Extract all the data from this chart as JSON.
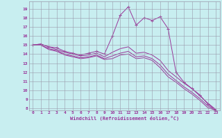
{
  "xlabel": "Windchill (Refroidissement éolien,°C)",
  "xlim": [
    -0.5,
    23.5
  ],
  "ylim": [
    7.8,
    19.8
  ],
  "yticks": [
    8,
    9,
    10,
    11,
    12,
    13,
    14,
    15,
    16,
    17,
    18,
    19
  ],
  "xticks": [
    0,
    1,
    2,
    3,
    4,
    5,
    6,
    7,
    8,
    9,
    10,
    11,
    12,
    13,
    14,
    15,
    16,
    17,
    18,
    19,
    20,
    21,
    22,
    23
  ],
  "bg_color": "#c8eef0",
  "line_color": "#993399",
  "grid_color": "#9999aa",
  "lines": [
    {
      "x": [
        0,
        1,
        2,
        3,
        4,
        5,
        6,
        7,
        8,
        9,
        10,
        11,
        12,
        13,
        14,
        15,
        16,
        17,
        18,
        19,
        20,
        21,
        22,
        23
      ],
      "y": [
        15.0,
        15.1,
        14.8,
        14.7,
        14.3,
        14.1,
        13.9,
        14.1,
        14.3,
        14.0,
        16.0,
        18.3,
        19.2,
        17.2,
        18.0,
        17.7,
        18.1,
        16.8,
        12.0,
        10.9,
        10.2,
        9.5,
        8.5,
        7.8
      ],
      "marker": "+"
    },
    {
      "x": [
        0,
        1,
        2,
        3,
        4,
        5,
        6,
        7,
        8,
        9,
        10,
        11,
        12,
        13,
        14,
        15,
        16,
        17,
        18,
        19,
        20,
        21,
        22,
        23
      ],
      "y": [
        15.0,
        15.1,
        14.8,
        14.5,
        14.2,
        14.0,
        13.8,
        13.9,
        14.1,
        13.7,
        14.2,
        14.6,
        14.8,
        14.1,
        14.2,
        13.9,
        13.3,
        12.2,
        11.5,
        10.8,
        10.2,
        9.4,
        8.6,
        7.9
      ],
      "marker": null
    },
    {
      "x": [
        0,
        1,
        2,
        3,
        4,
        5,
        6,
        7,
        8,
        9,
        10,
        11,
        12,
        13,
        14,
        15,
        16,
        17,
        18,
        19,
        20,
        21,
        22,
        23
      ],
      "y": [
        15.0,
        15.0,
        14.6,
        14.4,
        14.0,
        13.8,
        13.6,
        13.7,
        13.9,
        13.5,
        13.8,
        14.1,
        14.3,
        13.7,
        13.8,
        13.5,
        12.8,
        11.8,
        11.1,
        10.4,
        9.8,
        9.1,
        8.3,
        7.8
      ],
      "marker": null
    },
    {
      "x": [
        0,
        1,
        2,
        3,
        4,
        5,
        6,
        7,
        8,
        9,
        10,
        11,
        12,
        13,
        14,
        15,
        16,
        17,
        18,
        19,
        20,
        21,
        22,
        23
      ],
      "y": [
        15.0,
        15.0,
        14.5,
        14.3,
        13.9,
        13.7,
        13.5,
        13.6,
        13.8,
        13.4,
        13.5,
        13.9,
        14.0,
        13.5,
        13.6,
        13.3,
        12.5,
        11.5,
        10.9,
        10.2,
        9.6,
        8.9,
        8.1,
        7.8
      ],
      "marker": null
    }
  ]
}
